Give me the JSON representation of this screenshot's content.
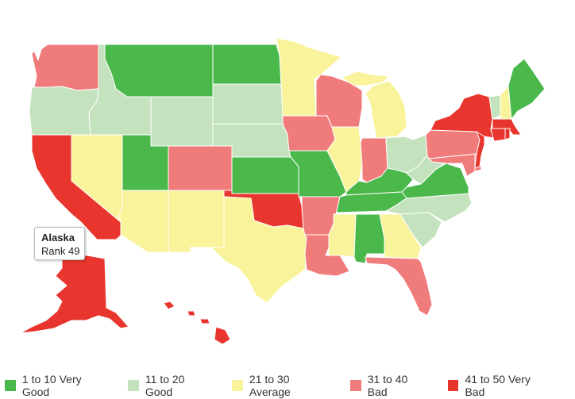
{
  "colors": {
    "very_good": "#4bb84b",
    "good": "#c4e2bd",
    "average": "#f9f49b",
    "bad": "#f07b7b",
    "very_bad": "#e8352d"
  },
  "tooltip": {
    "state": "Alaska",
    "rank_text": "Rank 49"
  },
  "legend": [
    {
      "label": "1 to 10 Very Good",
      "color": "#4bb84b"
    },
    {
      "label": "11 to 20 Good",
      "color": "#c4e2bd"
    },
    {
      "label": "21 to 30 Average",
      "color": "#f9f49b"
    },
    {
      "label": "31 to 40 Bad",
      "color": "#f07b7b"
    },
    {
      "label": "41 to 50 Very Bad",
      "color": "#e8352d"
    }
  ],
  "states": {
    "WA": "bad",
    "OR": "good",
    "CA": "very_bad",
    "NV": "average",
    "ID": "good",
    "MT": "very_good",
    "WY": "good",
    "UT": "very_good",
    "AZ": "average",
    "CO": "bad",
    "NM": "average",
    "ND": "very_good",
    "SD": "good",
    "NE": "good",
    "KS": "very_good",
    "OK": "very_bad",
    "TX": "average",
    "MN": "average",
    "IA": "bad",
    "MO": "very_good",
    "AR": "bad",
    "LA": "bad",
    "WI": "bad",
    "IL": "average",
    "MI": "average",
    "IN": "bad",
    "OH": "good",
    "KY": "very_good",
    "TN": "very_good",
    "MS": "average",
    "AL": "very_good",
    "GA": "average",
    "FL": "bad",
    "SC": "good",
    "NC": "good",
    "VA": "very_good",
    "WV": "good",
    "PA": "bad",
    "NY": "very_bad",
    "NJ": "very_bad",
    "DE": "bad",
    "MD": "bad",
    "CT": "very_bad",
    "RI": "very_bad",
    "MA": "very_bad",
    "VT": "good",
    "NH": "average",
    "ME": "very_good",
    "AK": "very_bad",
    "HI": "very_bad"
  }
}
